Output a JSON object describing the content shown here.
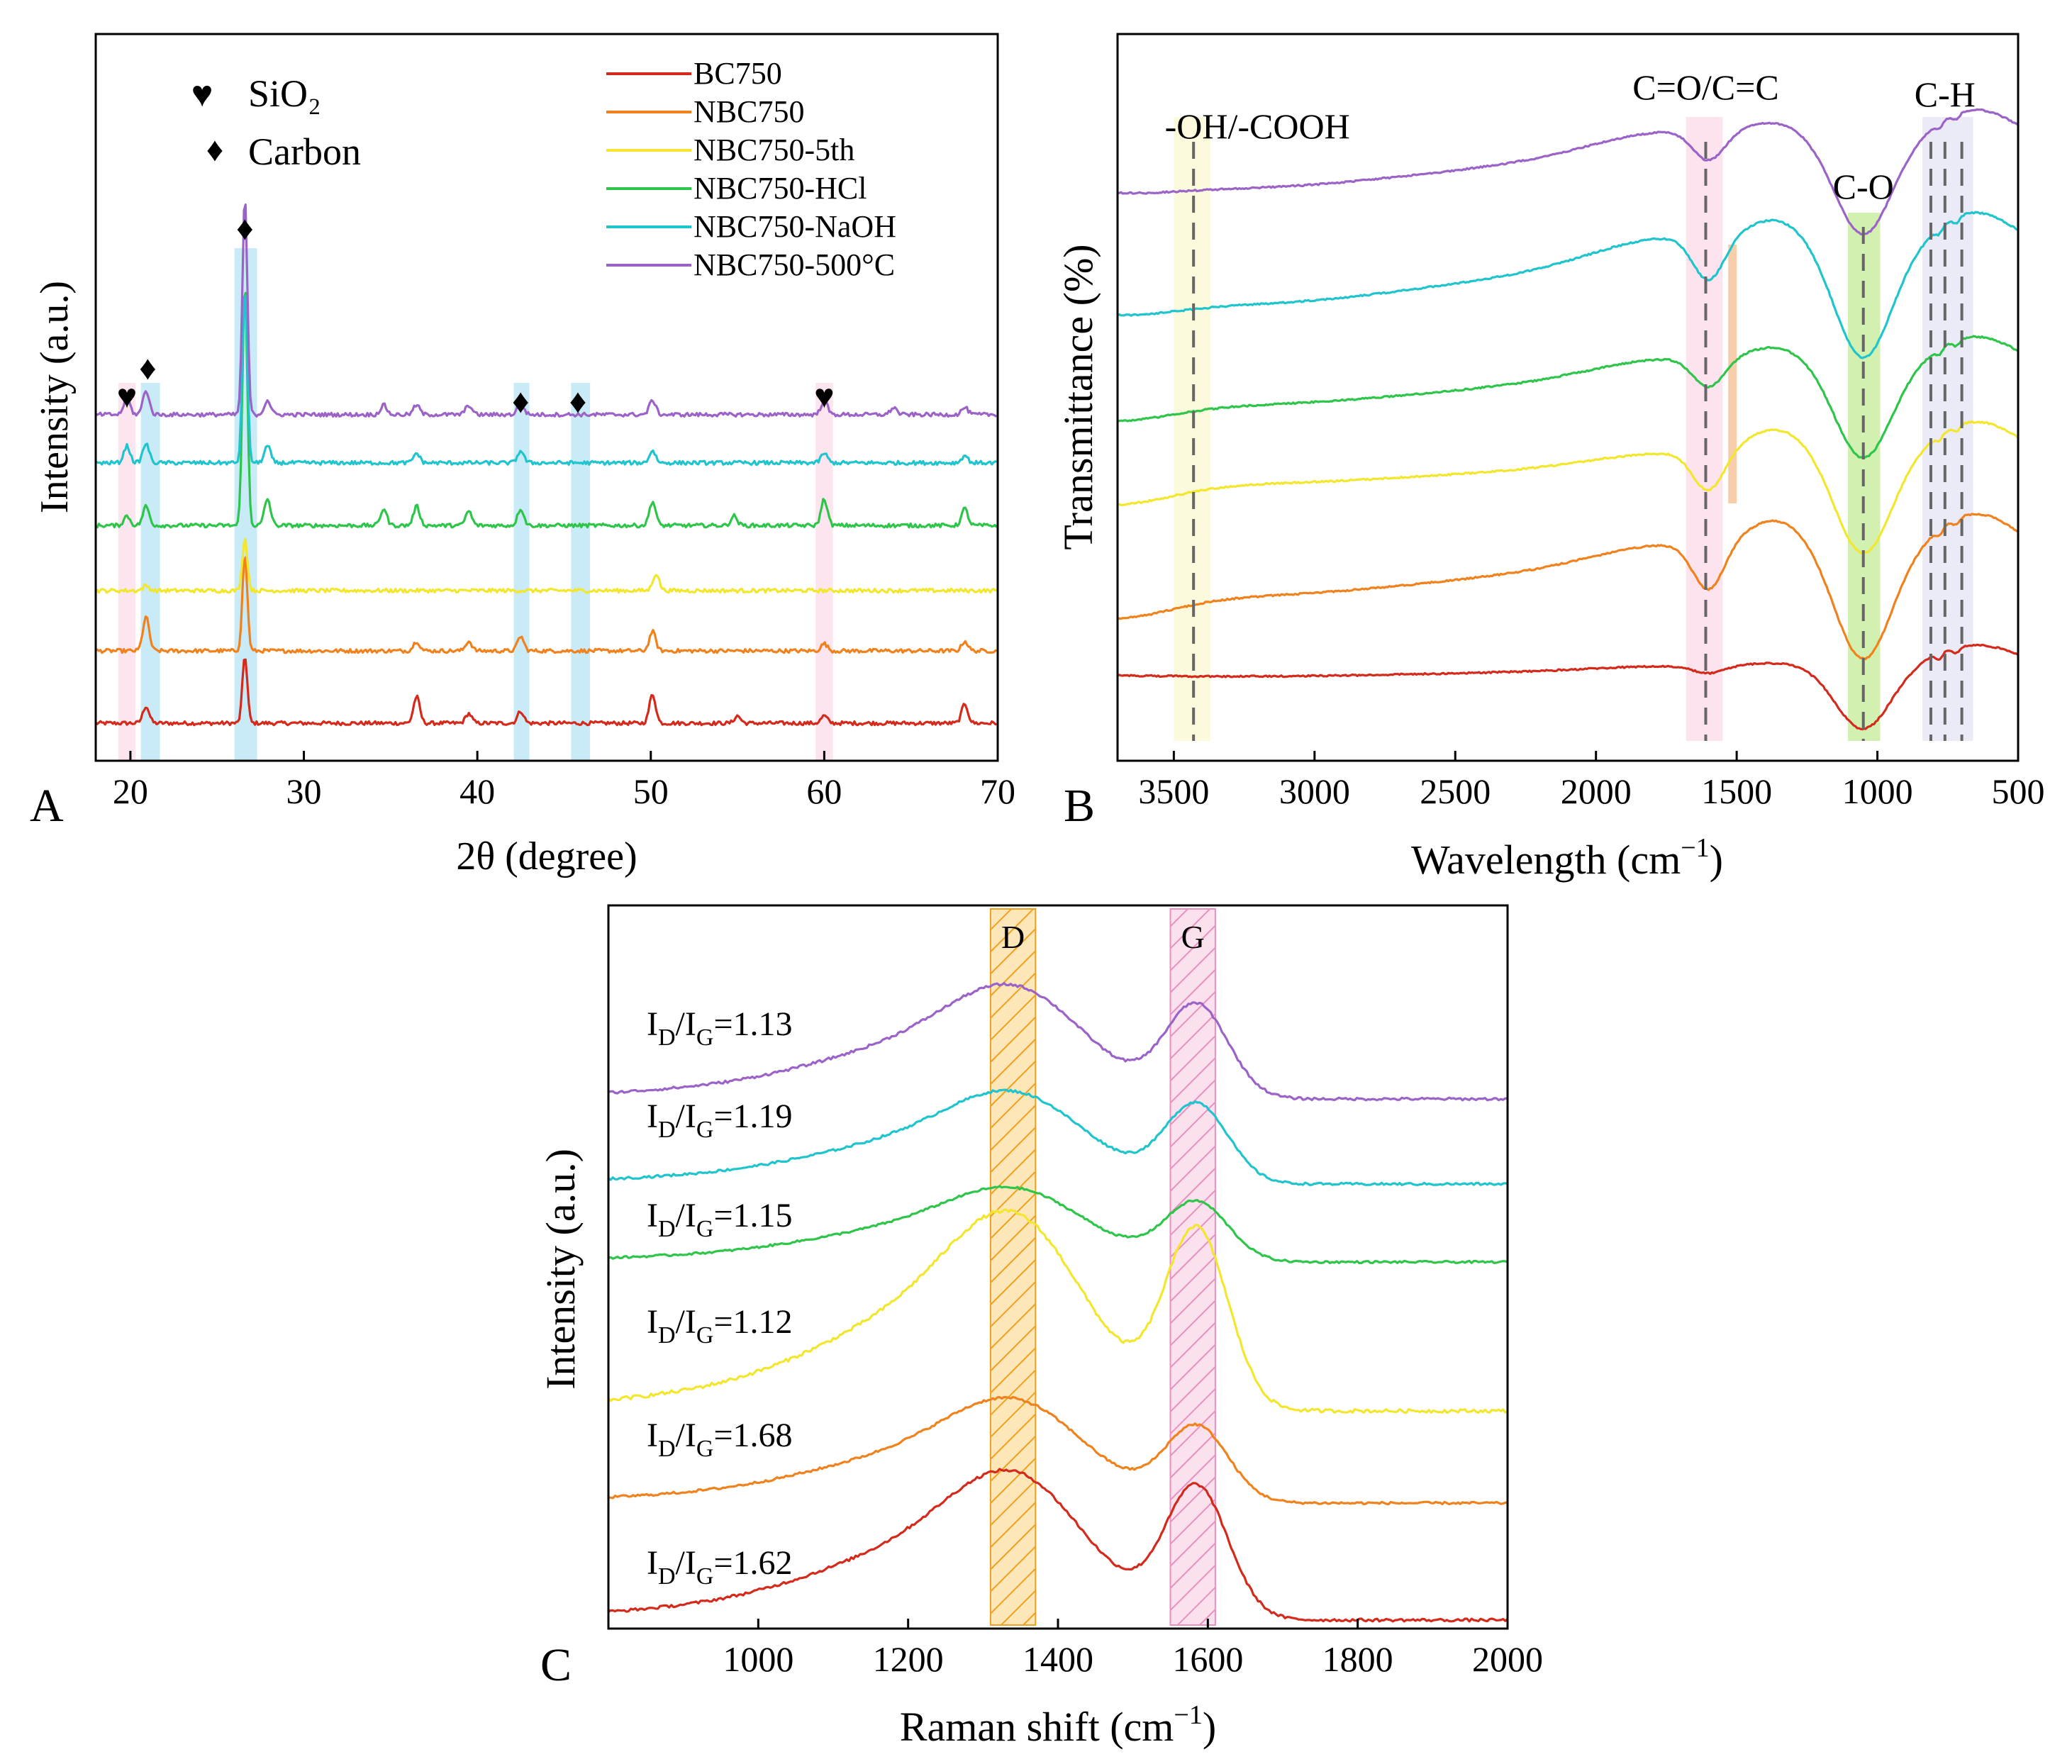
{
  "colors": {
    "BC750": "#d42a1c",
    "NBC750": "#f0821e",
    "NBC750-5th": "#f2e62e",
    "NBC750-HCl": "#2ec54a",
    "NBC750-NaOH": "#20c4cc",
    "NBC750-500C": "#9b63c8"
  },
  "chart_data": [
    {
      "panel": "A",
      "type": "line",
      "panel_label": "A",
      "xlabel": "2θ (degree)",
      "ylabel": "Intensity (a.u.)",
      "xlim": [
        18,
        70
      ],
      "xticks": [
        "20",
        "30",
        "40",
        "50",
        "60",
        "70"
      ],
      "xtick_values": [
        20,
        30,
        40,
        50,
        60,
        70
      ],
      "legend_position": "top-right",
      "symbol_legend": [
        {
          "symbol": "♥",
          "label": "SiO₂"
        },
        {
          "symbol": "♦",
          "label": "Carbon"
        }
      ],
      "peak_markers": [
        {
          "symbol": "♥",
          "x": 19.8
        },
        {
          "symbol": "♦",
          "x": 21.0
        },
        {
          "symbol": "♦",
          "x": 26.6
        },
        {
          "symbol": "♦",
          "x": 42.5
        },
        {
          "symbol": "♦",
          "x": 45.8
        },
        {
          "symbol": "♥",
          "x": 60.0
        }
      ],
      "bands": [
        {
          "x0": 19.3,
          "x1": 20.3,
          "color": "pink"
        },
        {
          "x0": 20.6,
          "x1": 21.7,
          "color": "blue"
        },
        {
          "x0": 26.0,
          "x1": 27.3,
          "color": "blue"
        },
        {
          "x0": 42.1,
          "x1": 43.0,
          "color": "blue"
        },
        {
          "x0": 45.4,
          "x1": 46.5,
          "color": "blue"
        },
        {
          "x0": 59.5,
          "x1": 60.5,
          "color": "pink"
        }
      ],
      "series": [
        {
          "name": "BC750",
          "offset": 0,
          "peaks": [
            [
              20.9,
              7
            ],
            [
              26.6,
              28
            ],
            [
              36.5,
              11
            ],
            [
              39.5,
              4
            ],
            [
              42.5,
              5
            ],
            [
              50.1,
              12
            ],
            [
              55.0,
              3
            ],
            [
              60.0,
              3
            ],
            [
              68.1,
              8
            ]
          ]
        },
        {
          "name": "NBC750",
          "offset": 30,
          "peaks": [
            [
              20.9,
              14
            ],
            [
              26.6,
              40
            ],
            [
              36.5,
              4
            ],
            [
              39.5,
              4
            ],
            [
              42.5,
              6
            ],
            [
              50.1,
              8
            ],
            [
              60.0,
              3
            ],
            [
              68.1,
              4
            ]
          ]
        },
        {
          "name": "NBC750-5th",
          "offset": 55,
          "peaks": [
            [
              20.9,
              2
            ],
            [
              26.6,
              22
            ],
            [
              50.3,
              7
            ]
          ]
        },
        {
          "name": "NBC750-HCl",
          "offset": 82,
          "peaks": [
            [
              19.8,
              4
            ],
            [
              20.9,
              8
            ],
            [
              26.6,
              100
            ],
            [
              27.9,
              11
            ],
            [
              34.6,
              7
            ],
            [
              36.5,
              8
            ],
            [
              39.5,
              6
            ],
            [
              42.5,
              7
            ],
            [
              50.1,
              10
            ],
            [
              54.8,
              4
            ],
            [
              60.0,
              11
            ],
            [
              68.1,
              7
            ]
          ]
        },
        {
          "name": "NBC750-NaOH",
          "offset": 108,
          "peaks": [
            [
              19.8,
              7
            ],
            [
              20.9,
              8
            ],
            [
              26.6,
              72
            ],
            [
              27.9,
              7
            ],
            [
              36.5,
              4
            ],
            [
              42.5,
              5
            ],
            [
              50.1,
              5
            ],
            [
              60.0,
              4
            ],
            [
              68.1,
              3
            ]
          ]
        },
        {
          "name": "NBC750-500°C",
          "offset": 128,
          "peaks": [
            [
              19.8,
              7
            ],
            [
              20.9,
              10
            ],
            [
              26.6,
              90
            ],
            [
              27.9,
              6
            ],
            [
              34.6,
              4
            ],
            [
              36.5,
              4
            ],
            [
              39.5,
              4
            ],
            [
              42.5,
              5
            ],
            [
              50.1,
              6
            ],
            [
              60.0,
              6
            ],
            [
              64.0,
              3
            ],
            [
              68.1,
              3
            ]
          ]
        }
      ]
    },
    {
      "panel": "B",
      "type": "line",
      "panel_label": "B",
      "xlabel": "Wavelength (cm",
      "xlabel_sup": "−1",
      "xlabel_close": ")",
      "ylabel": "Transmittance (%)",
      "xlim": [
        3700,
        500
      ],
      "xticks": [
        "3500",
        "3000",
        "2500",
        "2000",
        "1500",
        "1000",
        "500"
      ],
      "xtick_values": [
        3500,
        3000,
        2500,
        2000,
        1500,
        1000,
        500
      ],
      "annotations": [
        {
          "text": "-OH/-COOH",
          "x": 3430
        },
        {
          "text": "C=O/C=C",
          "x": 1610
        },
        {
          "text": "C-O",
          "x": 1050
        },
        {
          "text": "C-H",
          "x": 760
        }
      ],
      "dashed_lines": [
        3430,
        1610,
        1050,
        810,
        760,
        700
      ],
      "bands": [
        {
          "x0": 3500,
          "x1": 3370,
          "color": "yellow"
        },
        {
          "x0": 1680,
          "x1": 1550,
          "color": "pink"
        },
        {
          "x0": 1530,
          "x1": 1500,
          "color": "orange"
        },
        {
          "x0": 1105,
          "x1": 990,
          "color": "green"
        },
        {
          "x0": 840,
          "x1": 660,
          "color": "lavender"
        }
      ],
      "series": [
        {
          "name": "BC750",
          "offset": 0
        },
        {
          "name": "NBC750",
          "offset": 1
        },
        {
          "name": "NBC750-5th",
          "offset": 2
        },
        {
          "name": "NBC750-HCl",
          "offset": 3
        },
        {
          "name": "NBC750-NaOH",
          "offset": 4
        },
        {
          "name": "NBC750-500°C",
          "offset": 5
        }
      ]
    },
    {
      "panel": "C",
      "type": "line",
      "panel_label": "C",
      "xlabel": "Raman shift (cm",
      "xlabel_sup": "−1",
      "xlabel_close": ")",
      "ylabel": "Intensity (a.u.)",
      "xlim": [
        800,
        2000
      ],
      "xticks": [
        "1000",
        "1200",
        "1400",
        "1600",
        "1800",
        "2000"
      ],
      "xtick_values": [
        1000,
        1200,
        1400,
        1600,
        1800,
        2000
      ],
      "band_labels": [
        {
          "text": "D",
          "x0": 1310,
          "x1": 1370
        },
        {
          "text": "G",
          "x0": 1550,
          "x1": 1610
        }
      ],
      "series": [
        {
          "name": "BC750",
          "ratio": "1.62",
          "d": 0.75,
          "g": 0.92
        },
        {
          "name": "NBC750",
          "ratio": "1.68",
          "d": 0.62,
          "g": 0.62
        },
        {
          "name": "NBC750-5th",
          "ratio": "1.12",
          "d": 0.8,
          "g": 1.0
        },
        {
          "name": "NBC750-HCl",
          "ratio": "1.15",
          "d": 0.5,
          "g": 0.55
        },
        {
          "name": "NBC750-NaOH",
          "ratio": "1.19",
          "d": 0.55,
          "g": 0.65
        },
        {
          "name": "NBC750-500°C",
          "ratio": "1.13",
          "d": 0.62,
          "g": 0.7
        }
      ],
      "ratio_prefix": "I",
      "ratio_sub_d": "D",
      "ratio_slash": "/I",
      "ratio_sub_g": "G",
      "ratio_eq": "="
    }
  ]
}
